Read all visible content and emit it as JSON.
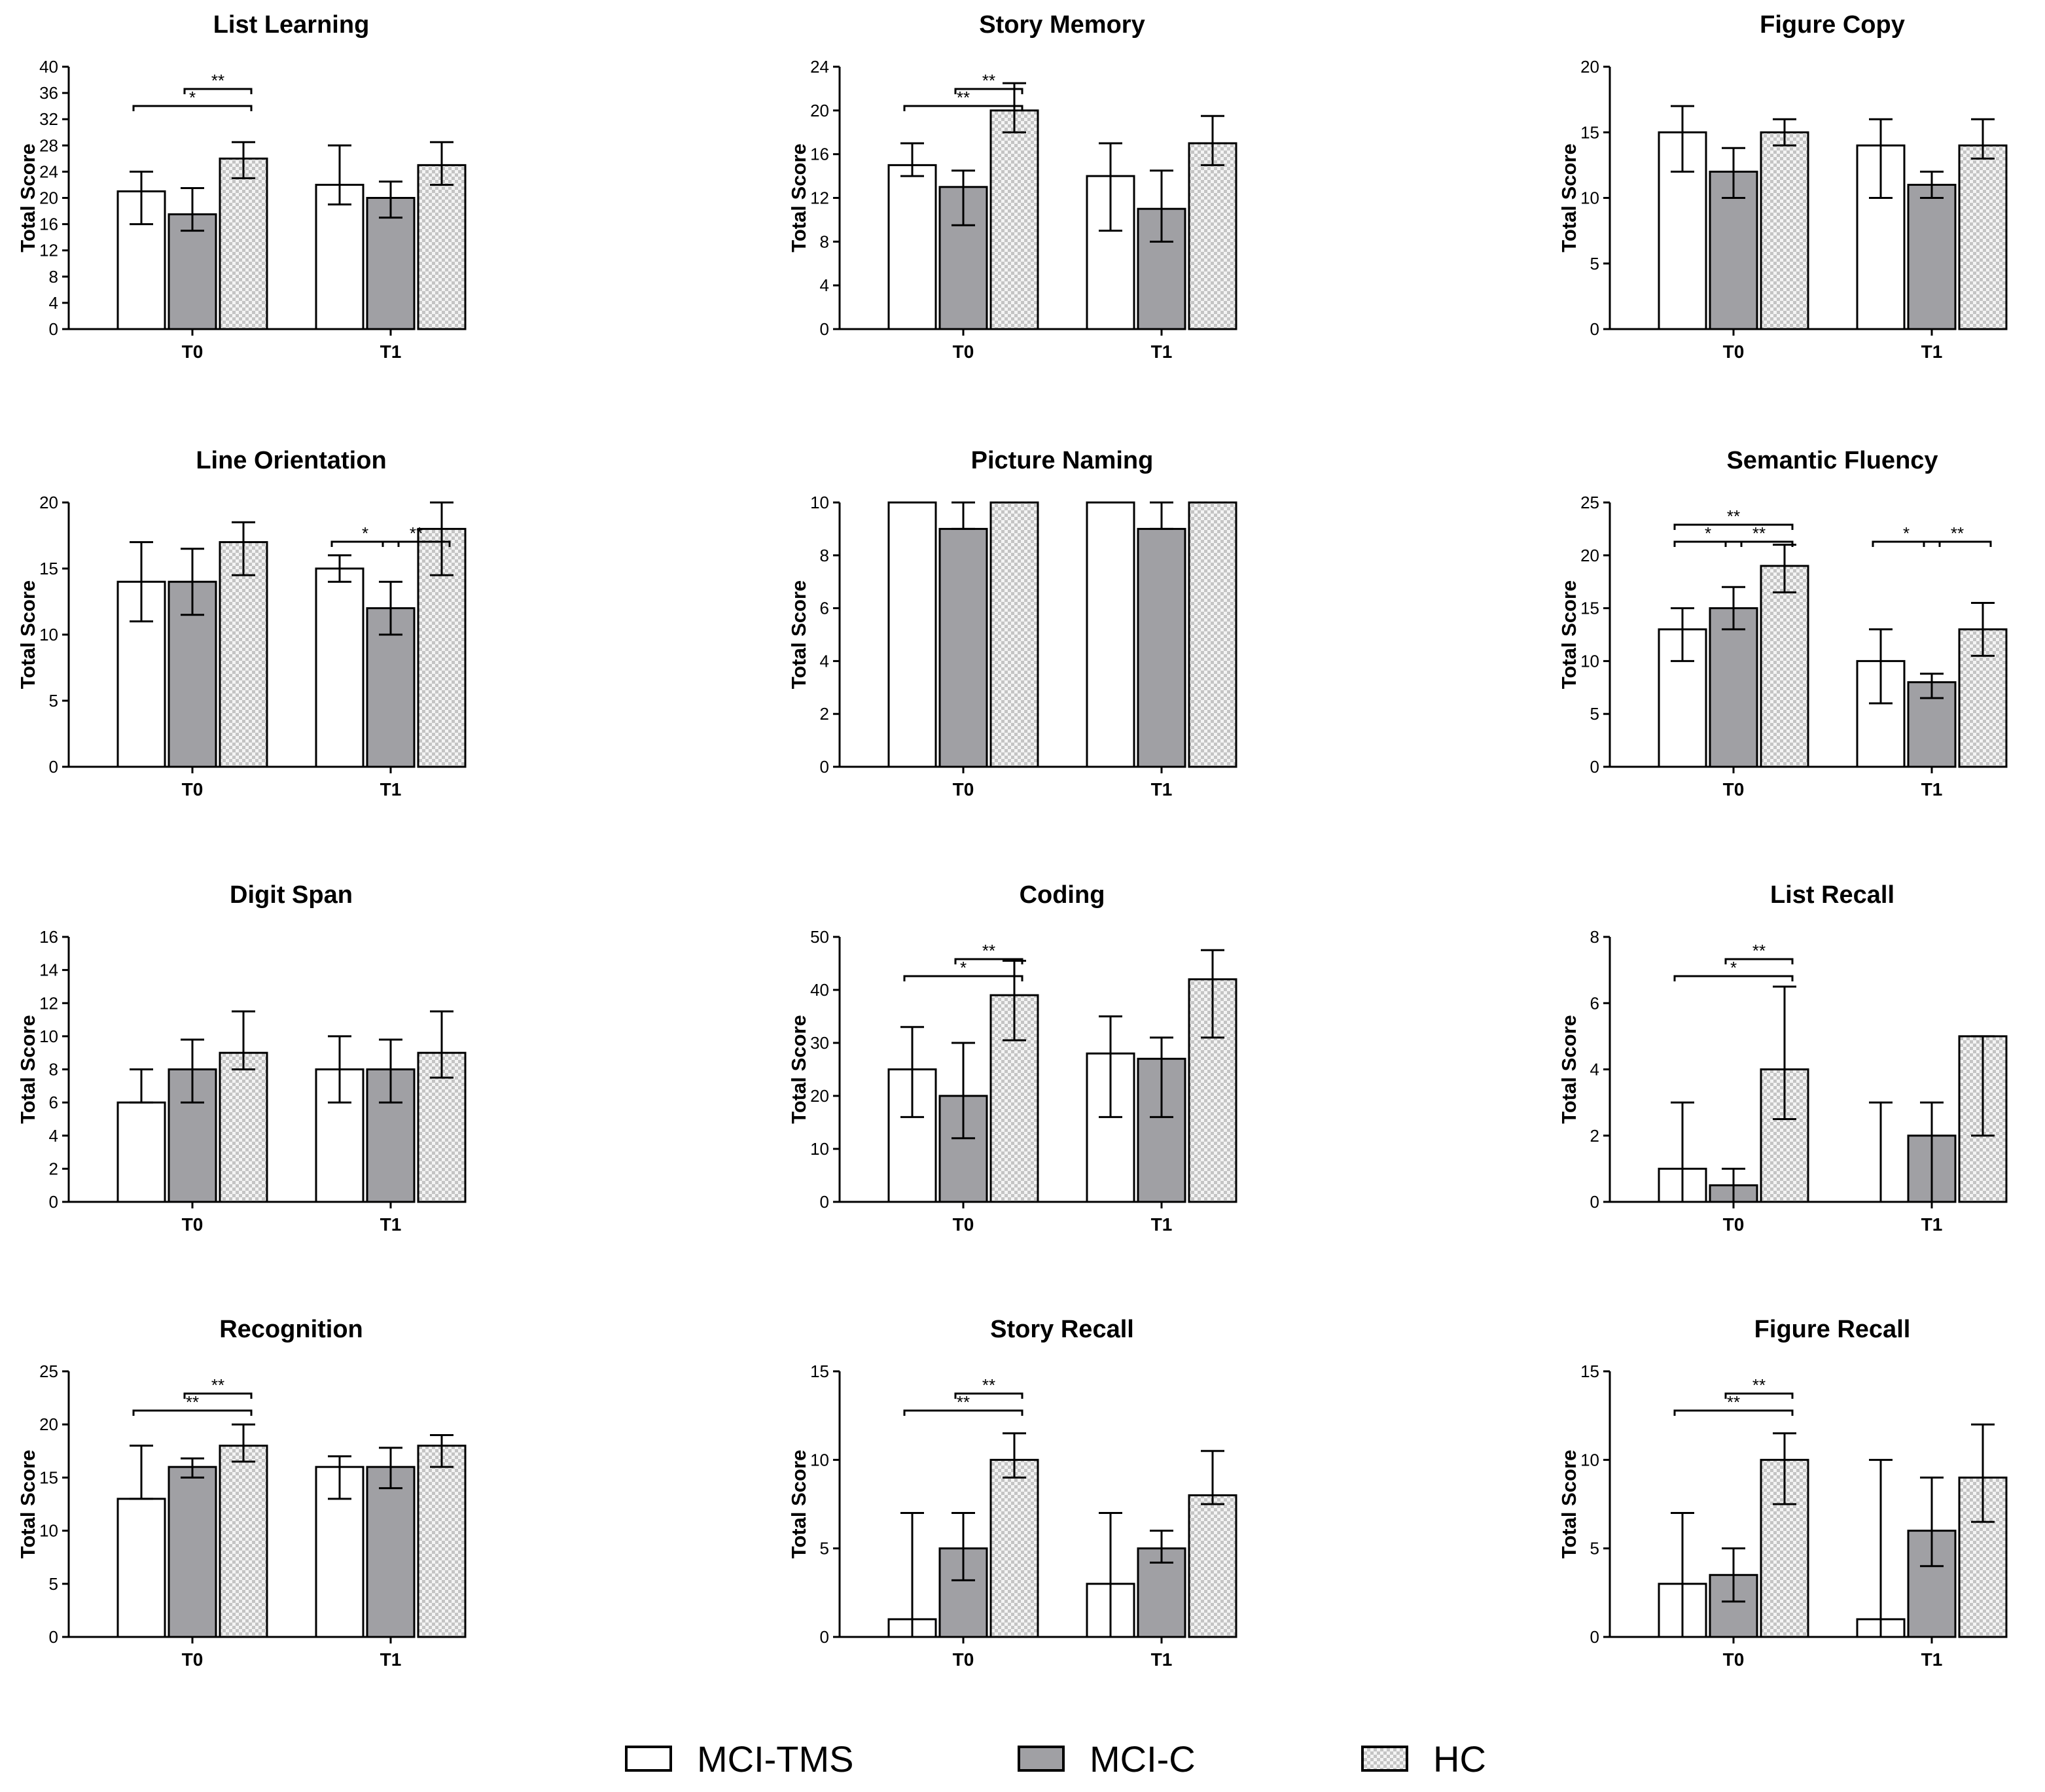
{
  "figure": {
    "legend": [
      {
        "label": "MCI-TMS",
        "fill": "white"
      },
      {
        "label": "MCI-C",
        "fill": "gray"
      },
      {
        "label": "HC",
        "fill": "checker"
      }
    ],
    "colors": {
      "mci_tms": "#ffffff",
      "mci_c": "#a0a0a4",
      "hc_light": "#f4f4f4",
      "hc_dark": "#c4c4c4",
      "axis": "#000000"
    }
  },
  "chart_data": [
    {
      "type": "bar",
      "title": "List Learning",
      "ylabel": "Total Score",
      "categories": [
        "T0",
        "T1"
      ],
      "ylim": [
        0,
        40
      ],
      "yticks": [
        0,
        4,
        8,
        12,
        16,
        20,
        24,
        28,
        32,
        36,
        40
      ],
      "series": [
        {
          "name": "MCI-TMS",
          "values": [
            21,
            22
          ],
          "err_low": [
            16,
            19
          ],
          "err_high": [
            24,
            28
          ]
        },
        {
          "name": "MCI-C",
          "values": [
            17.5,
            20
          ],
          "err_low": [
            15,
            17
          ],
          "err_high": [
            21.5,
            22.5
          ]
        },
        {
          "name": "HC",
          "values": [
            26,
            25
          ],
          "err_low": [
            23,
            22
          ],
          "err_high": [
            28.5,
            28.5
          ]
        }
      ],
      "significance": [
        {
          "group": 0,
          "from": 0,
          "to": 2,
          "label": "*",
          "level": 0
        },
        {
          "group": 0,
          "from": 1,
          "to": 2,
          "label": "**",
          "level": 1
        }
      ]
    },
    {
      "type": "bar",
      "title": "Story Memory",
      "ylabel": "Total Score",
      "categories": [
        "T0",
        "T1"
      ],
      "ylim": [
        0,
        24
      ],
      "yticks": [
        0,
        4,
        8,
        12,
        16,
        20,
        24
      ],
      "series": [
        {
          "name": "MCI-TMS",
          "values": [
            15,
            14
          ],
          "err_low": [
            14,
            9
          ],
          "err_high": [
            17,
            17
          ]
        },
        {
          "name": "MCI-C",
          "values": [
            13,
            11
          ],
          "err_low": [
            9.5,
            8
          ],
          "err_high": [
            14.5,
            14.5
          ]
        },
        {
          "name": "HC",
          "values": [
            20,
            17
          ],
          "err_low": [
            18,
            15
          ],
          "err_high": [
            22.5,
            19.5
          ]
        }
      ],
      "significance": [
        {
          "group": 0,
          "from": 0,
          "to": 2,
          "label": "**",
          "level": 0
        },
        {
          "group": 0,
          "from": 1,
          "to": 2,
          "label": "**",
          "level": 1
        }
      ]
    },
    {
      "type": "bar",
      "title": "Figure Copy",
      "ylabel": "Total Score",
      "categories": [
        "T0",
        "T1"
      ],
      "ylim": [
        0,
        20
      ],
      "yticks": [
        0,
        5,
        10,
        15,
        20
      ],
      "series": [
        {
          "name": "MCI-TMS",
          "values": [
            15,
            14
          ],
          "err_low": [
            12,
            10
          ],
          "err_high": [
            17,
            16
          ]
        },
        {
          "name": "MCI-C",
          "values": [
            12,
            11
          ],
          "err_low": [
            10,
            10
          ],
          "err_high": [
            13.8,
            12
          ]
        },
        {
          "name": "HC",
          "values": [
            15,
            14
          ],
          "err_low": [
            14,
            13
          ],
          "err_high": [
            16,
            16
          ]
        }
      ],
      "significance": []
    },
    {
      "type": "bar",
      "title": "Line Orientation",
      "ylabel": "Total Score",
      "categories": [
        "T0",
        "T1"
      ],
      "ylim": [
        0,
        20
      ],
      "yticks": [
        0,
        5,
        10,
        15,
        20
      ],
      "series": [
        {
          "name": "MCI-TMS",
          "values": [
            14,
            15
          ],
          "err_low": [
            11,
            14
          ],
          "err_high": [
            17,
            16
          ]
        },
        {
          "name": "MCI-C",
          "values": [
            14,
            12
          ],
          "err_low": [
            11.5,
            10
          ],
          "err_high": [
            16.5,
            14
          ]
        },
        {
          "name": "HC",
          "values": [
            17,
            18
          ],
          "err_low": [
            14.5,
            14.5
          ],
          "err_high": [
            18.5,
            20
          ]
        }
      ],
      "significance": [
        {
          "group": 1,
          "from": 0,
          "to": 1,
          "label": "*",
          "level": 0
        },
        {
          "group": 1,
          "from": 1,
          "to": 2,
          "label": "**",
          "level": 0
        }
      ]
    },
    {
      "type": "bar",
      "title": "Picture Naming",
      "ylabel": "Total Score",
      "categories": [
        "T0",
        "T1"
      ],
      "ylim": [
        0,
        10
      ],
      "yticks": [
        0,
        2,
        4,
        6,
        8,
        10
      ],
      "series": [
        {
          "name": "MCI-TMS",
          "values": [
            10,
            10
          ],
          "err_low": [
            10,
            10
          ],
          "err_high": [
            10,
            10
          ]
        },
        {
          "name": "MCI-C",
          "values": [
            9,
            9
          ],
          "err_low": [
            9,
            9
          ],
          "err_high": [
            10,
            10
          ]
        },
        {
          "name": "HC",
          "values": [
            10,
            10
          ],
          "err_low": [
            10,
            10
          ],
          "err_high": [
            10,
            10
          ]
        }
      ],
      "significance": []
    },
    {
      "type": "bar",
      "title": "Semantic Fluency",
      "ylabel": "Total Score",
      "categories": [
        "T0",
        "T1"
      ],
      "ylim": [
        0,
        25
      ],
      "yticks": [
        0,
        5,
        10,
        15,
        20,
        25
      ],
      "series": [
        {
          "name": "MCI-TMS",
          "values": [
            13,
            10
          ],
          "err_low": [
            10,
            6
          ],
          "err_high": [
            15,
            13
          ]
        },
        {
          "name": "MCI-C",
          "values": [
            15,
            8
          ],
          "err_low": [
            13,
            6.5
          ],
          "err_high": [
            17,
            8.8
          ]
        },
        {
          "name": "HC",
          "values": [
            19,
            13
          ],
          "err_low": [
            16.5,
            10.5
          ],
          "err_high": [
            21,
            15.5
          ]
        }
      ],
      "significance": [
        {
          "group": 0,
          "from": 0,
          "to": 1,
          "label": "*",
          "level": 0
        },
        {
          "group": 0,
          "from": 1,
          "to": 2,
          "label": "**",
          "level": 0
        },
        {
          "group": 0,
          "from": 0,
          "to": 2,
          "label": "**",
          "level": 1
        },
        {
          "group": 1,
          "from": 0,
          "to": 1,
          "label": "*",
          "level": 0
        },
        {
          "group": 1,
          "from": 1,
          "to": 2,
          "label": "**",
          "level": 0
        }
      ]
    },
    {
      "type": "bar",
      "title": "Digit Span",
      "ylabel": "Total Score",
      "categories": [
        "T0",
        "T1"
      ],
      "ylim": [
        0,
        16
      ],
      "yticks": [
        0,
        2,
        4,
        6,
        8,
        10,
        12,
        14,
        16
      ],
      "series": [
        {
          "name": "MCI-TMS",
          "values": [
            6,
            8
          ],
          "err_low": [
            6,
            6
          ],
          "err_high": [
            8,
            10
          ]
        },
        {
          "name": "MCI-C",
          "values": [
            8,
            8
          ],
          "err_low": [
            6,
            6
          ],
          "err_high": [
            9.8,
            9.8
          ]
        },
        {
          "name": "HC",
          "values": [
            9,
            9
          ],
          "err_low": [
            8,
            7.5
          ],
          "err_high": [
            11.5,
            11.5
          ]
        }
      ],
      "significance": []
    },
    {
      "type": "bar",
      "title": "Coding",
      "ylabel": "Total Score",
      "categories": [
        "T0",
        "T1"
      ],
      "ylim": [
        0,
        50
      ],
      "yticks": [
        0,
        10,
        20,
        30,
        40,
        50
      ],
      "series": [
        {
          "name": "MCI-TMS",
          "values": [
            25,
            28
          ],
          "err_low": [
            16,
            16
          ],
          "err_high": [
            33,
            35
          ]
        },
        {
          "name": "MCI-C",
          "values": [
            20,
            27
          ],
          "err_low": [
            12,
            16
          ],
          "err_high": [
            30,
            31
          ]
        },
        {
          "name": "HC",
          "values": [
            39,
            42
          ],
          "err_low": [
            30.5,
            31
          ],
          "err_high": [
            45.5,
            47.5
          ]
        }
      ],
      "significance": [
        {
          "group": 0,
          "from": 0,
          "to": 2,
          "label": "*",
          "level": 0
        },
        {
          "group": 0,
          "from": 1,
          "to": 2,
          "label": "**",
          "level": 1
        }
      ]
    },
    {
      "type": "bar",
      "title": "List Recall",
      "ylabel": "Total Score",
      "categories": [
        "T0",
        "T1"
      ],
      "ylim": [
        0,
        8
      ],
      "yticks": [
        0,
        2,
        4,
        6,
        8
      ],
      "series": [
        {
          "name": "MCI-TMS",
          "values": [
            1,
            0
          ],
          "err_low": [
            0,
            0
          ],
          "err_high": [
            3,
            3
          ]
        },
        {
          "name": "MCI-C",
          "values": [
            0.5,
            2
          ],
          "err_low": [
            0,
            0
          ],
          "err_high": [
            1,
            3
          ]
        },
        {
          "name": "HC",
          "values": [
            4,
            5
          ],
          "err_low": [
            2.5,
            2
          ],
          "err_high": [
            6.5,
            5
          ]
        }
      ],
      "significance": [
        {
          "group": 0,
          "from": 0,
          "to": 2,
          "label": "*",
          "level": 0
        },
        {
          "group": 0,
          "from": 1,
          "to": 2,
          "label": "**",
          "level": 1
        }
      ]
    },
    {
      "type": "bar",
      "title": "Recognition",
      "ylabel": "Total Score",
      "categories": [
        "T0",
        "T1"
      ],
      "ylim": [
        0,
        25
      ],
      "yticks": [
        0,
        5,
        10,
        15,
        20,
        25
      ],
      "series": [
        {
          "name": "MCI-TMS",
          "values": [
            13,
            16
          ],
          "err_low": [
            13,
            13
          ],
          "err_high": [
            18,
            17
          ]
        },
        {
          "name": "MCI-C",
          "values": [
            16,
            16
          ],
          "err_low": [
            15,
            14
          ],
          "err_high": [
            16.8,
            17.8
          ]
        },
        {
          "name": "HC",
          "values": [
            18,
            18
          ],
          "err_low": [
            16.5,
            16
          ],
          "err_high": [
            20,
            19
          ]
        }
      ],
      "significance": [
        {
          "group": 0,
          "from": 0,
          "to": 2,
          "label": "**",
          "level": 0
        },
        {
          "group": 0,
          "from": 1,
          "to": 2,
          "label": "**",
          "level": 1
        }
      ]
    },
    {
      "type": "bar",
      "title": "Story Recall",
      "ylabel": "Total Score",
      "categories": [
        "T0",
        "T1"
      ],
      "ylim": [
        0,
        15
      ],
      "yticks": [
        0,
        5,
        10,
        15
      ],
      "series": [
        {
          "name": "MCI-TMS",
          "values": [
            1,
            3
          ],
          "err_low": [
            0,
            0
          ],
          "err_high": [
            7,
            7
          ]
        },
        {
          "name": "MCI-C",
          "values": [
            5,
            5
          ],
          "err_low": [
            3.2,
            4.2
          ],
          "err_high": [
            7,
            6
          ]
        },
        {
          "name": "HC",
          "values": [
            10,
            8
          ],
          "err_low": [
            9,
            7.5
          ],
          "err_high": [
            11.5,
            10.5
          ]
        }
      ],
      "significance": [
        {
          "group": 0,
          "from": 0,
          "to": 2,
          "label": "**",
          "level": 0
        },
        {
          "group": 0,
          "from": 1,
          "to": 2,
          "label": "**",
          "level": 1
        }
      ]
    },
    {
      "type": "bar",
      "title": "Figure Recall",
      "ylabel": "Total Score",
      "categories": [
        "T0",
        "T1"
      ],
      "ylim": [
        0,
        15
      ],
      "yticks": [
        0,
        5,
        10,
        15
      ],
      "series": [
        {
          "name": "MCI-TMS",
          "values": [
            3,
            1
          ],
          "err_low": [
            0,
            0
          ],
          "err_high": [
            7,
            10
          ]
        },
        {
          "name": "MCI-C",
          "values": [
            3.5,
            6
          ],
          "err_low": [
            2,
            4
          ],
          "err_high": [
            5,
            9
          ]
        },
        {
          "name": "HC",
          "values": [
            10,
            9
          ],
          "err_low": [
            7.5,
            6.5
          ],
          "err_high": [
            11.5,
            12
          ]
        }
      ],
      "significance": [
        {
          "group": 0,
          "from": 0,
          "to": 2,
          "label": "**",
          "level": 0
        },
        {
          "group": 0,
          "from": 1,
          "to": 2,
          "label": "**",
          "level": 1
        }
      ]
    }
  ]
}
